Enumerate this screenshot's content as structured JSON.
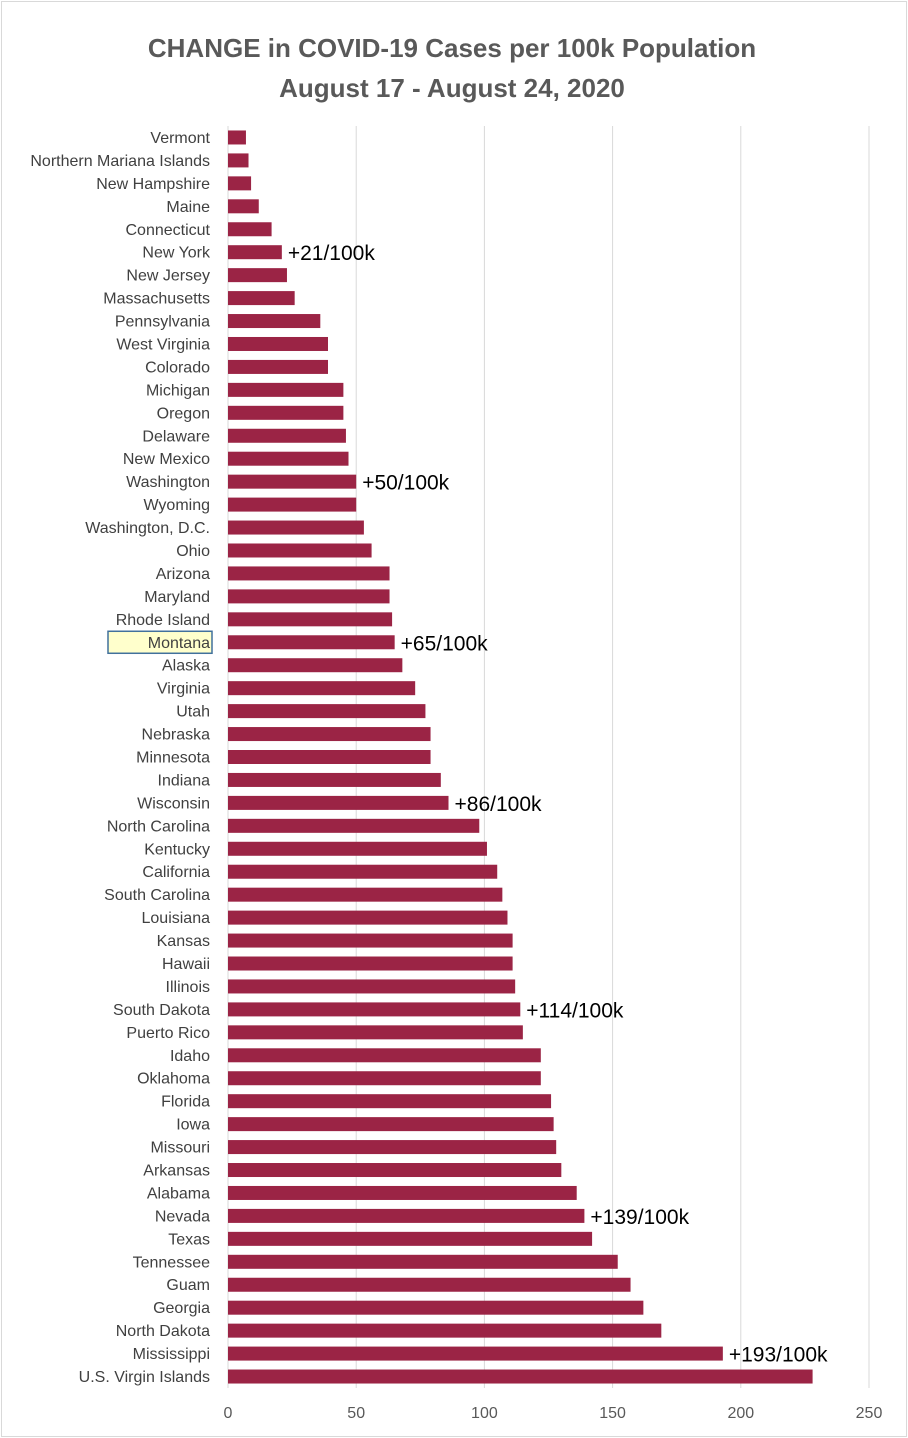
{
  "chart_data": {
    "type": "bar",
    "orientation": "horizontal",
    "title_line1": "CHANGE in COVID-19 Cases per 100k Population",
    "title_line2": "August 17 - August 24, 2020",
    "xlim": [
      0,
      250
    ],
    "xticks": [
      "0",
      "50",
      "100",
      "150",
      "200",
      "250"
    ],
    "grid": true,
    "bar_color": "#9b2445",
    "highlight": {
      "category": "Montana",
      "fill": "#ffffcc",
      "border": "#41719c",
      "text_color": "#7f7f00"
    },
    "categories": [
      "Vermont",
      "Northern Mariana Islands",
      "New Hampshire",
      "Maine",
      "Connecticut",
      "New York",
      "New Jersey",
      "Massachusetts",
      "Pennsylvania",
      "West Virginia",
      "Colorado",
      "Michigan",
      "Oregon",
      "Delaware",
      "New Mexico",
      "Washington",
      "Wyoming",
      "Washington, D.C.",
      "Ohio",
      "Arizona",
      "Maryland",
      "Rhode Island",
      "Montana",
      "Alaska",
      "Virginia",
      "Utah",
      "Nebraska",
      "Minnesota",
      "Indiana",
      "Wisconsin",
      "North Carolina",
      "Kentucky",
      "California",
      "South Carolina",
      "Louisiana",
      "Kansas",
      "Hawaii",
      "Illinois",
      "South Dakota",
      "Puerto Rico",
      "Idaho",
      "Oklahoma",
      "Florida",
      "Iowa",
      "Missouri",
      "Arkansas",
      "Alabama",
      "Nevada",
      "Texas",
      "Tennessee",
      "Guam",
      "Georgia",
      "North Dakota",
      "Mississippi",
      "U.S. Virgin Islands"
    ],
    "values": [
      7,
      8,
      9,
      12,
      17,
      21,
      23,
      26,
      36,
      39,
      39,
      45,
      45,
      46,
      47,
      50,
      50,
      53,
      56,
      63,
      63,
      64,
      65,
      68,
      73,
      77,
      79,
      79,
      83,
      86,
      98,
      101,
      105,
      107,
      109,
      111,
      111,
      112,
      114,
      115,
      122,
      122,
      126,
      127,
      128,
      130,
      136,
      139,
      142,
      152,
      157,
      162,
      169,
      193,
      228
    ],
    "annotations": [
      {
        "category": "New York",
        "text": "+21/100k"
      },
      {
        "category": "Washington",
        "text": "+50/100k"
      },
      {
        "category": "Montana",
        "text": "+65/100k"
      },
      {
        "category": "Wisconsin",
        "text": "+86/100k"
      },
      {
        "category": "South Dakota",
        "text": "+114/100k"
      },
      {
        "category": "Nevada",
        "text": "+139/100k"
      },
      {
        "category": "Mississippi",
        "text": "+193/100k"
      }
    ]
  }
}
